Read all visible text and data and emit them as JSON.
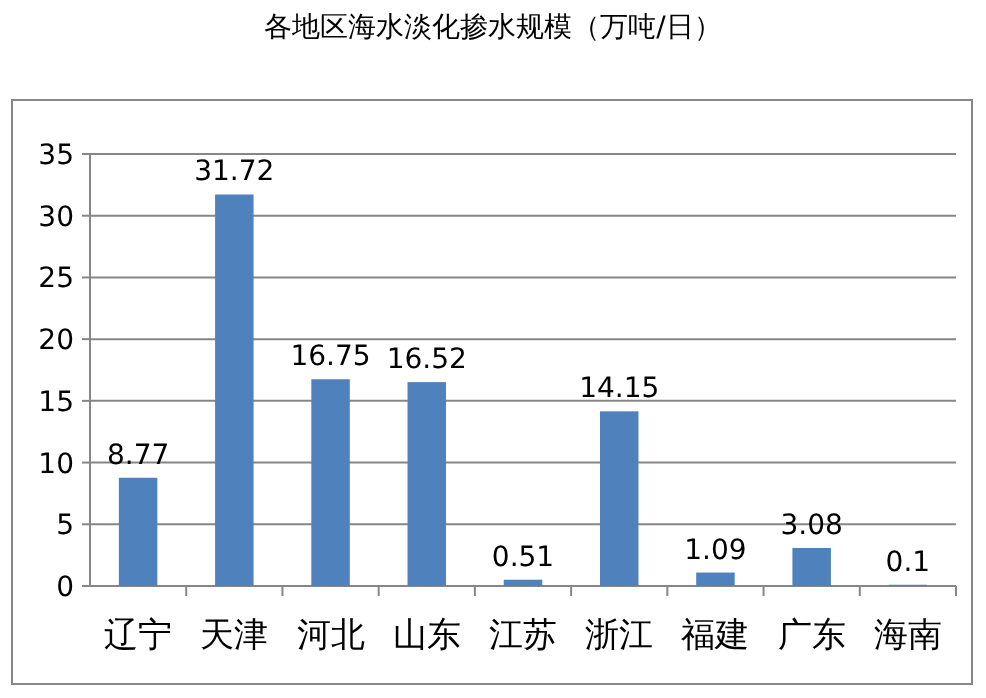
{
  "chart_data": {
    "type": "bar",
    "title": "各地区海水淡化掺水规模（万吨/日）",
    "categories": [
      "辽宁",
      "天津",
      "河北",
      "山东",
      "江苏",
      "浙江",
      "福建",
      "广东",
      "海南"
    ],
    "values": [
      8.77,
      31.72,
      16.75,
      16.52,
      0.51,
      14.15,
      1.09,
      3.08,
      0.1
    ],
    "color": "#4f81bd",
    "ylim": [
      0,
      35
    ],
    "yticks": [
      0,
      5,
      10,
      15,
      20,
      25,
      30,
      35
    ],
    "grid": "y",
    "data_labels": true
  }
}
